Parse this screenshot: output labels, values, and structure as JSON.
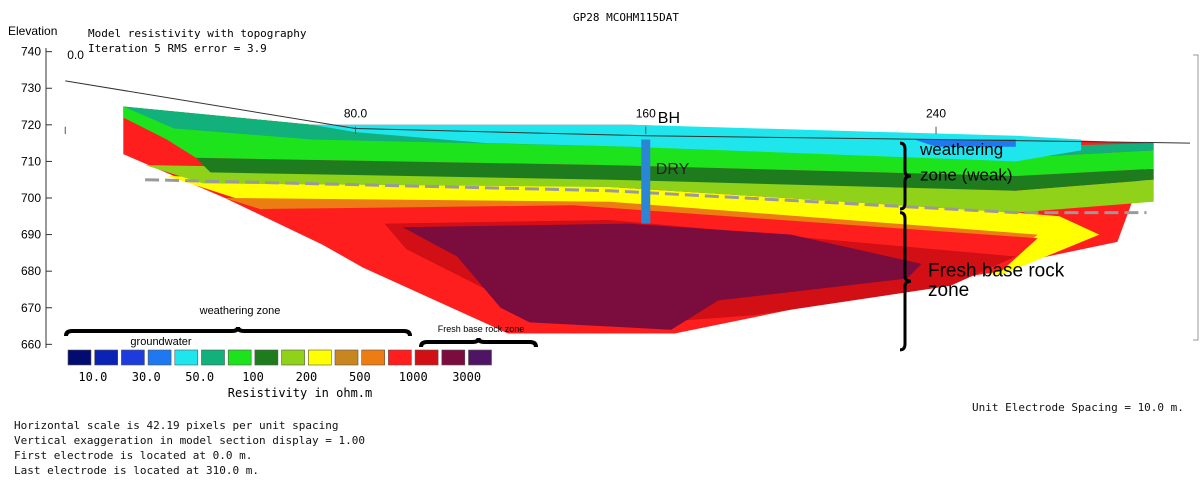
{
  "header": {
    "file_title": "GP28 MCOHM115DAT",
    "model_title": "Model resistivity with topography",
    "iteration_line": "Iteration 5 RMS error = 3.9"
  },
  "chart_data": {
    "type": "heatmap",
    "title": "Model resistivity with topography",
    "subtitle": "Iteration 5 RMS error = 3.9",
    "ylabel": "Elevation",
    "ylim": [
      659,
      741
    ],
    "xlim": [
      -2,
      310
    ],
    "y_ticks": [
      "740",
      "730",
      "720",
      "710",
      "700",
      "690",
      "680",
      "670",
      "660"
    ],
    "x_ticks": [
      {
        "value": 0,
        "label": "0.0"
      },
      {
        "value": 80,
        "label": "80.0"
      },
      {
        "value": 160,
        "label": "160"
      },
      {
        "value": 240,
        "label": "240"
      }
    ],
    "topography": [
      [
        0,
        732
      ],
      [
        80,
        719
      ],
      [
        160,
        717
      ],
      [
        240,
        716
      ],
      [
        310,
        715
      ]
    ],
    "model_section_outline": [
      [
        16,
        725
      ],
      [
        68,
        720
      ],
      [
        156,
        720
      ],
      [
        300,
        715
      ],
      [
        290,
        688
      ],
      [
        232,
        676
      ],
      [
        168,
        663
      ],
      [
        122,
        663
      ],
      [
        44,
        700
      ],
      [
        16,
        712
      ]
    ],
    "zones": [
      {
        "color": "#ffff00",
        "outline": [
          [
            28,
            706
          ],
          [
            150,
            703
          ],
          [
            262,
            696
          ],
          [
            274,
            695
          ],
          [
            285,
            690
          ],
          [
            258,
            679
          ],
          [
            140,
            684
          ],
          [
            50,
            699
          ]
        ]
      },
      {
        "color": "#eb7d12",
        "outline": [
          [
            44,
            700
          ],
          [
            150,
            699
          ],
          [
            268,
            690
          ],
          [
            256,
            680
          ],
          [
            140,
            684
          ],
          [
            60,
            695
          ]
        ]
      },
      {
        "color": "#ff1e1e",
        "outline": [
          [
            54,
            697
          ],
          [
            140,
            698
          ],
          [
            268,
            689
          ],
          [
            258,
            680
          ],
          [
            232,
            676
          ],
          [
            168,
            663
          ],
          [
            122,
            663
          ],
          [
            82,
            681
          ],
          [
            66,
            690
          ]
        ]
      },
      {
        "color": "#d20f14",
        "outline": [
          [
            88,
            693
          ],
          [
            150,
            694
          ],
          [
            262,
            684
          ],
          [
            244,
            676
          ],
          [
            190,
            668
          ],
          [
            150,
            665
          ],
          [
            118,
            674
          ],
          [
            94,
            686
          ]
        ]
      },
      {
        "color": "#7a0c3e",
        "outline": [
          [
            93,
            692
          ],
          [
            155,
            693
          ],
          [
            200,
            690
          ],
          [
            236,
            682
          ],
          [
            232,
            678
          ],
          [
            180,
            672
          ],
          [
            167,
            664
          ],
          [
            128,
            666
          ],
          [
            120,
            670
          ],
          [
            108,
            684
          ]
        ]
      },
      {
        "color": "#90d21a",
        "outline": [
          [
            22,
            709
          ],
          [
            150,
            707
          ],
          [
            262,
            702
          ],
          [
            300,
            705
          ],
          [
            300,
            699
          ],
          [
            262,
            696
          ],
          [
            150,
            703
          ],
          [
            38,
            704
          ]
        ]
      },
      {
        "color": "#1e7c1e",
        "outline": [
          [
            36,
            711
          ],
          [
            150,
            709
          ],
          [
            262,
            706
          ],
          [
            300,
            708
          ],
          [
            300,
            705
          ],
          [
            262,
            702
          ],
          [
            150,
            705
          ],
          [
            40,
            707
          ]
        ]
      },
      {
        "color": "#1de31d",
        "outline": [
          [
            16,
            725
          ],
          [
            68,
            720
          ],
          [
            156,
            714
          ],
          [
            262,
            711
          ],
          [
            300,
            713
          ],
          [
            300,
            708
          ],
          [
            262,
            706
          ],
          [
            150,
            709
          ],
          [
            36,
            711
          ],
          [
            28,
            716
          ],
          [
            16,
            722
          ]
        ]
      },
      {
        "color": "#12b07a",
        "outline": [
          [
            16,
            725
          ],
          [
            68,
            720
          ],
          [
            116,
            719
          ],
          [
            156,
            716
          ],
          [
            262,
            714
          ],
          [
            300,
            715
          ],
          [
            300,
            713
          ],
          [
            262,
            711
          ],
          [
            156,
            714
          ],
          [
            68,
            716
          ],
          [
            30,
            719
          ]
        ]
      },
      {
        "color": "#1ee6ec",
        "outline": [
          [
            68,
            720
          ],
          [
            156,
            720
          ],
          [
            262,
            717
          ],
          [
            280,
            716
          ],
          [
            280,
            713
          ],
          [
            262,
            710
          ],
          [
            156,
            714
          ],
          [
            116,
            715
          ],
          [
            80,
            718
          ]
        ]
      },
      {
        "color": "#1e78f0",
        "outline": [
          [
            234,
            716
          ],
          [
            262,
            716
          ],
          [
            262,
            714
          ],
          [
            240,
            714
          ]
        ]
      }
    ],
    "water_table": [
      [
        22,
        705
      ],
      [
        150,
        702
      ],
      [
        262,
        696
      ],
      [
        298,
        696
      ]
    ],
    "borehole": {
      "label": "BH",
      "x": 160,
      "top": 716,
      "bottom": 693,
      "color": "#2c86d6"
    },
    "legend": {
      "label": "Resistivity in ohm.m",
      "colors": [
        "#020b6e",
        "#0a23b4",
        "#1e3cdc",
        "#1e78f0",
        "#1ee6ec",
        "#12b07a",
        "#1de31d",
        "#1e7c1e",
        "#90d21a",
        "#ffff00",
        "#c8861e",
        "#eb7d12",
        "#ff1e1e",
        "#d20f14",
        "#7a0c3e",
        "#501464"
      ],
      "tick_labels": [
        "10.0",
        "30.0",
        "50.0",
        "100",
        "200",
        "500",
        "1000",
        "3000"
      ],
      "groups": [
        "groundwater",
        "weathering zone",
        "Fresh base rock zone"
      ]
    },
    "annotations": {
      "dry": "DRY",
      "weathering_1": "weathering",
      "weathering_2": "zone (weak)",
      "fresh_1": "Fresh base rock",
      "fresh_2": "zone"
    }
  },
  "footer": {
    "left_lines": [
      "Horizontal scale is 42.19 pixels per unit spacing",
      "Vertical exaggeration in model section display = 1.00",
      "First electrode is located at  0.0  m.",
      "Last electrode is located at 310.0 m."
    ],
    "right_line": "Unit Electrode Spacing = 10.0 m."
  }
}
